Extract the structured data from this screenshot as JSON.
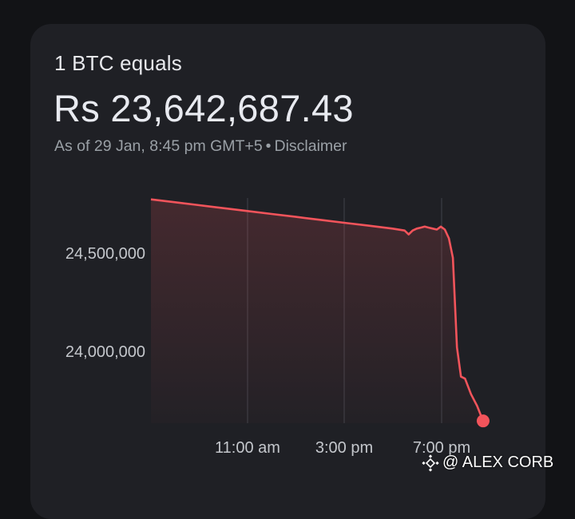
{
  "header": {
    "title": "1 BTC equals",
    "price": "Rs 23,642,687.43",
    "as_of": "As of 29 Jan, 8:45 pm GMT+5",
    "separator": "•",
    "disclaimer": "Disclaimer"
  },
  "chart_data": {
    "type": "area",
    "series_color": "#f2545b",
    "grid": true,
    "y_ticks": [
      "24,500,000",
      "24,000,000"
    ],
    "x_ticks": [
      "11:00 am",
      "3:00 pm",
      "7:00 pm"
    ],
    "ylim": [
      23550000,
      24880000
    ],
    "points": [
      [
        "7:00 am",
        24780000
      ],
      [
        "8:00 am",
        24765000
      ],
      [
        "9:00 am",
        24750000
      ],
      [
        "10:00 am",
        24735000
      ],
      [
        "11:00 am",
        24720000
      ],
      [
        "12:00 pm",
        24705000
      ],
      [
        "1:00 pm",
        24690000
      ],
      [
        "2:00 pm",
        24675000
      ],
      [
        "3:00 pm",
        24660000
      ],
      [
        "4:00 pm",
        24645000
      ],
      [
        "5:00 pm",
        24630000
      ],
      [
        "5:30 pm",
        24620000
      ],
      [
        "5:40 pm",
        24600000
      ],
      [
        "5:50 pm",
        24620000
      ],
      [
        "6:00 pm",
        24630000
      ],
      [
        "6:10 pm",
        24635000
      ],
      [
        "6:20 pm",
        24640000
      ],
      [
        "6:30 pm",
        24635000
      ],
      [
        "6:40 pm",
        24630000
      ],
      [
        "6:50 pm",
        24625000
      ],
      [
        "7:00 pm",
        24640000
      ],
      [
        "7:10 pm",
        24625000
      ],
      [
        "7:20 pm",
        24580000
      ],
      [
        "7:30 pm",
        24480000
      ],
      [
        "7:40 pm",
        24020000
      ],
      [
        "7:50 pm",
        23870000
      ],
      [
        "8:00 pm",
        23860000
      ],
      [
        "8:15 pm",
        23780000
      ],
      [
        "8:30 pm",
        23720000
      ],
      [
        "8:45 pm",
        23642687.43
      ]
    ]
  },
  "watermark": {
    "text": "@ ALEX CORB",
    "logo_icon": "binance-icon"
  }
}
